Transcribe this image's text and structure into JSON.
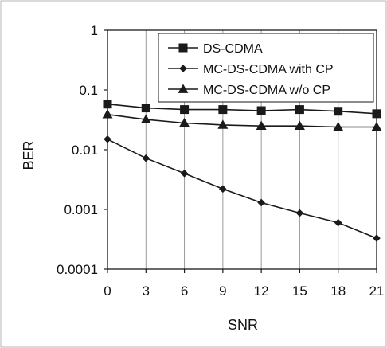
{
  "chart_data": {
    "type": "line",
    "title": "",
    "xlabel": "SNR",
    "ylabel": "BER",
    "x": [
      0,
      3,
      6,
      9,
      12,
      15,
      18,
      21
    ],
    "x_tick_labels": [
      "0",
      "3",
      "6",
      "9",
      "12",
      "15",
      "18",
      "21"
    ],
    "y_scale": "log",
    "ylim": [
      0.0001,
      1
    ],
    "y_tick_labels": [
      "1",
      "0.1",
      "0.01",
      "0.001",
      "0.0001"
    ],
    "y_tick_values": [
      1,
      0.1,
      0.01,
      0.001,
      0.0001
    ],
    "grid": "vertical",
    "legend_position": "top-right",
    "series": [
      {
        "name": "DS-CDMA",
        "marker": "square",
        "values": [
          0.058,
          0.05,
          0.047,
          0.047,
          0.045,
          0.047,
          0.044,
          0.04
        ]
      },
      {
        "name": "MC-DS-CDMA with CP",
        "marker": "diamond",
        "values": [
          0.015,
          0.0072,
          0.004,
          0.0022,
          0.0013,
          0.00087,
          0.0006,
          0.00033
        ]
      },
      {
        "name": "MC-DS-CDMA w/o CP",
        "marker": "triangle",
        "values": [
          0.039,
          0.032,
          0.028,
          0.026,
          0.025,
          0.025,
          0.024,
          0.024
        ]
      }
    ],
    "colors": {
      "line": "#1a1a1a",
      "grid": "#9a9a9a",
      "axis": "#1a1a1a",
      "background": "#ffffff",
      "border": "#b5b5b5"
    }
  }
}
